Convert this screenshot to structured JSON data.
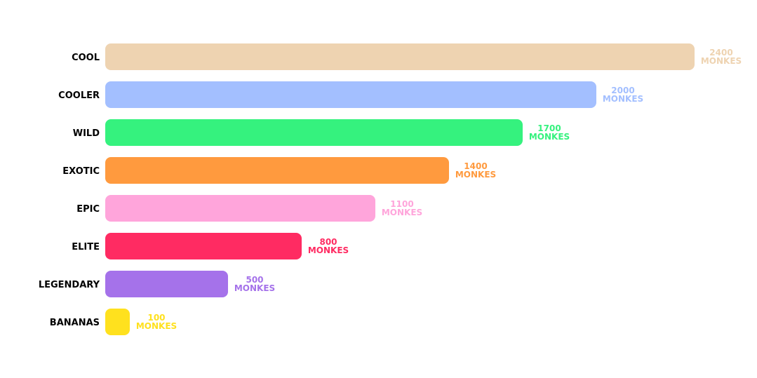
{
  "chart_data": {
    "type": "bar",
    "orientation": "horizontal",
    "title": "",
    "xlabel": "",
    "ylabel": "",
    "grid": false,
    "xlim": [
      0,
      2400
    ],
    "unit": "MONKES",
    "categories": [
      "COOL",
      "COOLER",
      "WILD",
      "EXOTIC",
      "EPIC",
      "ELITE",
      "LEGENDARY",
      "BANANAS"
    ],
    "values": [
      2400,
      2000,
      1700,
      1400,
      1100,
      800,
      500,
      100
    ],
    "colors": [
      "#eed3b1",
      "#a3bfff",
      "#35f27e",
      "#ff9a3e",
      "#ffa5db",
      "#ff2b62",
      "#a572ea",
      "#ffe11e"
    ]
  }
}
